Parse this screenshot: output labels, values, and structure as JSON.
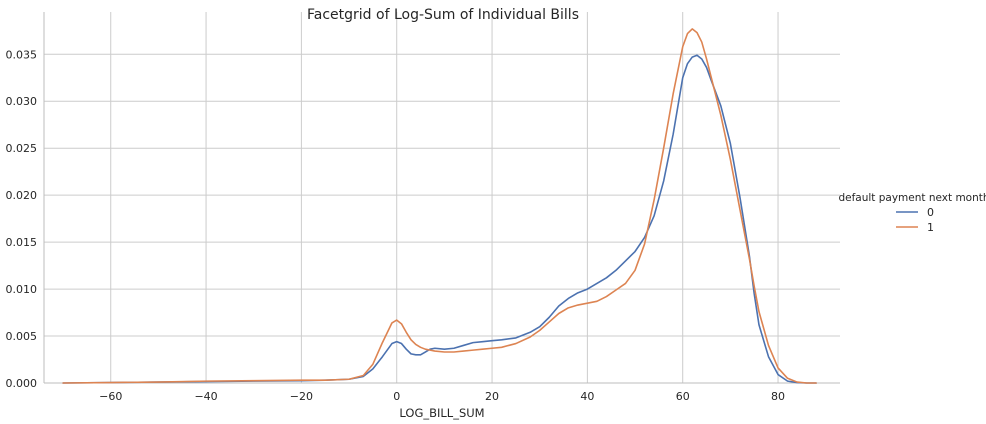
{
  "chart_data": {
    "type": "line",
    "title": "Facetgrid of Log-Sum of Individual Bills",
    "xlabel": "LOG_BILL_SUM",
    "ylabel": "",
    "xlim": [
      -74,
      93
    ],
    "ylim": [
      0,
      0.0395
    ],
    "xticks": [
      -60,
      -40,
      -20,
      0,
      20,
      40,
      60,
      80
    ],
    "xtick_labels": [
      "−60",
      "−40",
      "−20",
      "0",
      "20",
      "40",
      "60",
      "80"
    ],
    "yticks": [
      0,
      0.005,
      0.01,
      0.015,
      0.02,
      0.025,
      0.03,
      0.035
    ],
    "ytick_labels": [
      "0.000",
      "0.005",
      "0.010",
      "0.015",
      "0.020",
      "0.025",
      "0.030",
      "0.035"
    ],
    "grid": true,
    "legend": {
      "title": "default payment next month",
      "placement": "right"
    },
    "series": [
      {
        "name": "0",
        "color": "#4c72b0",
        "x": [
          -70,
          -60,
          -50,
          -40,
          -30,
          -20,
          -15,
          -10,
          -7,
          -5,
          -3,
          -1,
          0,
          1,
          2,
          3,
          4,
          5,
          6,
          7,
          8,
          10,
          12,
          14,
          16,
          18,
          20,
          22,
          25,
          28,
          30,
          32,
          34,
          36,
          38,
          40,
          42,
          44,
          46,
          48,
          50,
          52,
          54,
          56,
          58,
          60,
          61,
          62,
          63,
          64,
          65,
          66,
          68,
          70,
          72,
          74,
          75,
          76,
          78,
          80,
          82,
          84,
          86,
          88
        ],
        "y": [
          0,
          5e-05,
          0.0001,
          0.00015,
          0.0002,
          0.00025,
          0.0003,
          0.0004,
          0.0007,
          0.0015,
          0.0028,
          0.0042,
          0.0044,
          0.0042,
          0.0036,
          0.0031,
          0.003,
          0.003,
          0.0033,
          0.0036,
          0.0037,
          0.0036,
          0.0037,
          0.004,
          0.0043,
          0.0044,
          0.0045,
          0.0046,
          0.0048,
          0.0054,
          0.006,
          0.007,
          0.0082,
          0.009,
          0.0096,
          0.01,
          0.0106,
          0.0112,
          0.012,
          0.013,
          0.014,
          0.0155,
          0.0178,
          0.0215,
          0.0265,
          0.0325,
          0.034,
          0.0347,
          0.0349,
          0.0345,
          0.0336,
          0.0322,
          0.0295,
          0.0255,
          0.0198,
          0.0135,
          0.0095,
          0.0062,
          0.0028,
          0.0009,
          0.0002,
          5e-05,
          0,
          0
        ]
      },
      {
        "name": "1",
        "color": "#dd8452",
        "x": [
          -70,
          -60,
          -50,
          -40,
          -30,
          -20,
          -15,
          -10,
          -7,
          -5,
          -3,
          -1,
          0,
          1,
          2,
          3,
          4,
          5,
          6,
          7,
          8,
          10,
          12,
          14,
          16,
          18,
          20,
          22,
          25,
          28,
          30,
          32,
          34,
          36,
          38,
          40,
          42,
          44,
          46,
          48,
          50,
          52,
          54,
          56,
          58,
          60,
          61,
          62,
          63,
          64,
          65,
          66,
          68,
          70,
          72,
          74,
          75,
          76,
          78,
          80,
          82,
          84,
          86,
          88
        ],
        "y": [
          0,
          5e-05,
          0.0001,
          0.0002,
          0.00025,
          0.0003,
          0.0003,
          0.0004,
          0.0008,
          0.002,
          0.0043,
          0.0064,
          0.0067,
          0.0063,
          0.0054,
          0.0046,
          0.0041,
          0.0038,
          0.0036,
          0.0035,
          0.0034,
          0.0033,
          0.0033,
          0.0034,
          0.0035,
          0.0036,
          0.0037,
          0.0038,
          0.0042,
          0.0049,
          0.0056,
          0.0065,
          0.0074,
          0.008,
          0.0083,
          0.0085,
          0.0087,
          0.0092,
          0.0099,
          0.0106,
          0.012,
          0.0148,
          0.0195,
          0.025,
          0.0308,
          0.0358,
          0.0372,
          0.0377,
          0.0373,
          0.0363,
          0.0345,
          0.0325,
          0.0285,
          0.0238,
          0.0185,
          0.0132,
          0.0103,
          0.0076,
          0.004,
          0.0016,
          0.0005,
          0.0001,
          0,
          0
        ]
      }
    ]
  }
}
